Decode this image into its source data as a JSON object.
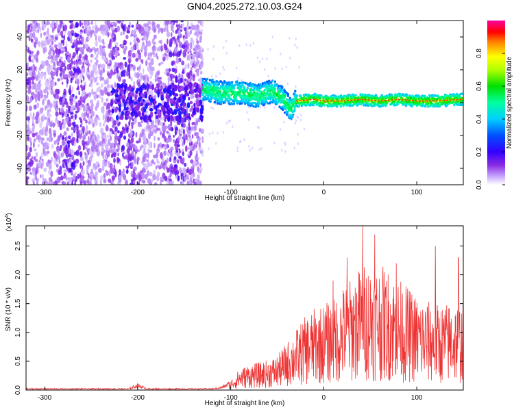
{
  "title": "GN04.2025.272.10.03.G24",
  "top_panel": {
    "xlabel": "Height of straight line (km)",
    "ylabel": "Frequency (Hz)",
    "colorbar_label": "Normalized spectral amplitude"
  },
  "bottom_panel": {
    "xlabel": "Height of straight line (km)",
    "ylabel": "SNR (10 * v/v)",
    "multiplier": "(x10",
    "multiplier_exp": "4",
    "multiplier_close": ")"
  },
  "colors": {
    "snr_line": "#ee3333",
    "axis": "#000000",
    "ridge_core": "#ff3300"
  },
  "chart_data": [
    {
      "type": "heatmap",
      "title": "GN04.2025.272.10.03.G24",
      "xlabel": "Height of straight line (km)",
      "ylabel": "Frequency (Hz)",
      "xlim": [
        -320,
        150
      ],
      "ylim": [
        -50,
        50
      ],
      "xticks": [
        -300,
        -200,
        -100,
        0,
        100
      ],
      "yticks": [
        -40,
        -20,
        0,
        20,
        40
      ],
      "colorbar": {
        "label": "Normalized spectral amplitude",
        "range": [
          0.0,
          1.0
        ],
        "ticks": [
          0.0,
          0.2,
          0.4,
          0.6,
          0.8
        ],
        "tick_labels": [
          "0.0",
          "0.2",
          "0.4",
          "0.6",
          "0.8"
        ],
        "colormap": "rainbow (white-purple-blue-cyan-green-yellow-red-magenta)"
      },
      "regions": [
        {
          "name": "noise",
          "x_range": [
            -320,
            -130
          ],
          "y_range": [
            -50,
            50
          ],
          "amplitude": 0.05
        },
        {
          "name": "blob",
          "x_range": [
            -230,
            -130
          ],
          "y_range": [
            -10,
            10
          ],
          "amplitude": 0.15
        },
        {
          "name": "wide signal",
          "x_range": [
            -130,
            -30
          ],
          "y_range": [
            -10,
            12
          ],
          "amplitude": 0.35
        },
        {
          "name": "narrow signal",
          "x_range": [
            -30,
            150
          ],
          "y_range": [
            -3,
            6
          ],
          "amplitude": 0.9
        }
      ],
      "ridge": [
        {
          "x": -130,
          "y": 8
        },
        {
          "x": -110,
          "y": 6
        },
        {
          "x": -90,
          "y": 6
        },
        {
          "x": -70,
          "y": 4
        },
        {
          "x": -55,
          "y": 7
        },
        {
          "x": -45,
          "y": 3
        },
        {
          "x": -35,
          "y": -4
        },
        {
          "x": -30,
          "y": 1
        },
        {
          "x": -10,
          "y": 2
        },
        {
          "x": 0,
          "y": 1
        },
        {
          "x": 20,
          "y": 1
        },
        {
          "x": 40,
          "y": 2
        },
        {
          "x": 60,
          "y": 1
        },
        {
          "x": 80,
          "y": 2
        },
        {
          "x": 100,
          "y": 1
        },
        {
          "x": 120,
          "y": 1
        },
        {
          "x": 150,
          "y": 2
        }
      ]
    },
    {
      "type": "line",
      "xlabel": "Height of straight line (km)",
      "ylabel": "SNR (10 * v/v)",
      "y_multiplier": "x10^4",
      "xlim": [
        -320,
        150
      ],
      "ylim": [
        0,
        2.85
      ],
      "xticks": [
        -300,
        -200,
        -100,
        0,
        100
      ],
      "yticks": [
        0.0,
        0.5,
        1.0,
        1.5,
        2.0,
        2.5
      ],
      "ytick_labels": [
        "0.0",
        "0.5",
        "1.0",
        "1.5",
        "2.0",
        "2.5"
      ],
      "series": [
        {
          "name": "SNR envelope",
          "x": [
            -320,
            -300,
            -250,
            -210,
            -200,
            -190,
            -150,
            -120,
            -110,
            -100,
            -90,
            -80,
            -70,
            -60,
            -50,
            -40,
            -30,
            -20,
            -10,
            0,
            10,
            20,
            30,
            40,
            50,
            60,
            70,
            80,
            90,
            100,
            110,
            120,
            130,
            140,
            150
          ],
          "y": [
            0.02,
            0.02,
            0.02,
            0.02,
            0.08,
            0.02,
            0.02,
            0.02,
            0.04,
            0.12,
            0.25,
            0.3,
            0.32,
            0.35,
            0.4,
            0.55,
            0.7,
            0.85,
            0.95,
            1.0,
            1.05,
            1.2,
            1.3,
            1.45,
            1.5,
            1.45,
            1.4,
            1.3,
            1.2,
            1.1,
            1.05,
            1.0,
            1.0,
            1.05,
            1.0
          ],
          "peaks": [
            {
              "x": 10,
              "y": 1.9
            },
            {
              "x": 25,
              "y": 2.3
            },
            {
              "x": 42,
              "y": 2.85
            },
            {
              "x": 55,
              "y": 2.7
            },
            {
              "x": 78,
              "y": 2.2
            },
            {
              "x": 120,
              "y": 2.5
            },
            {
              "x": 145,
              "y": 2.3
            }
          ]
        }
      ]
    }
  ]
}
